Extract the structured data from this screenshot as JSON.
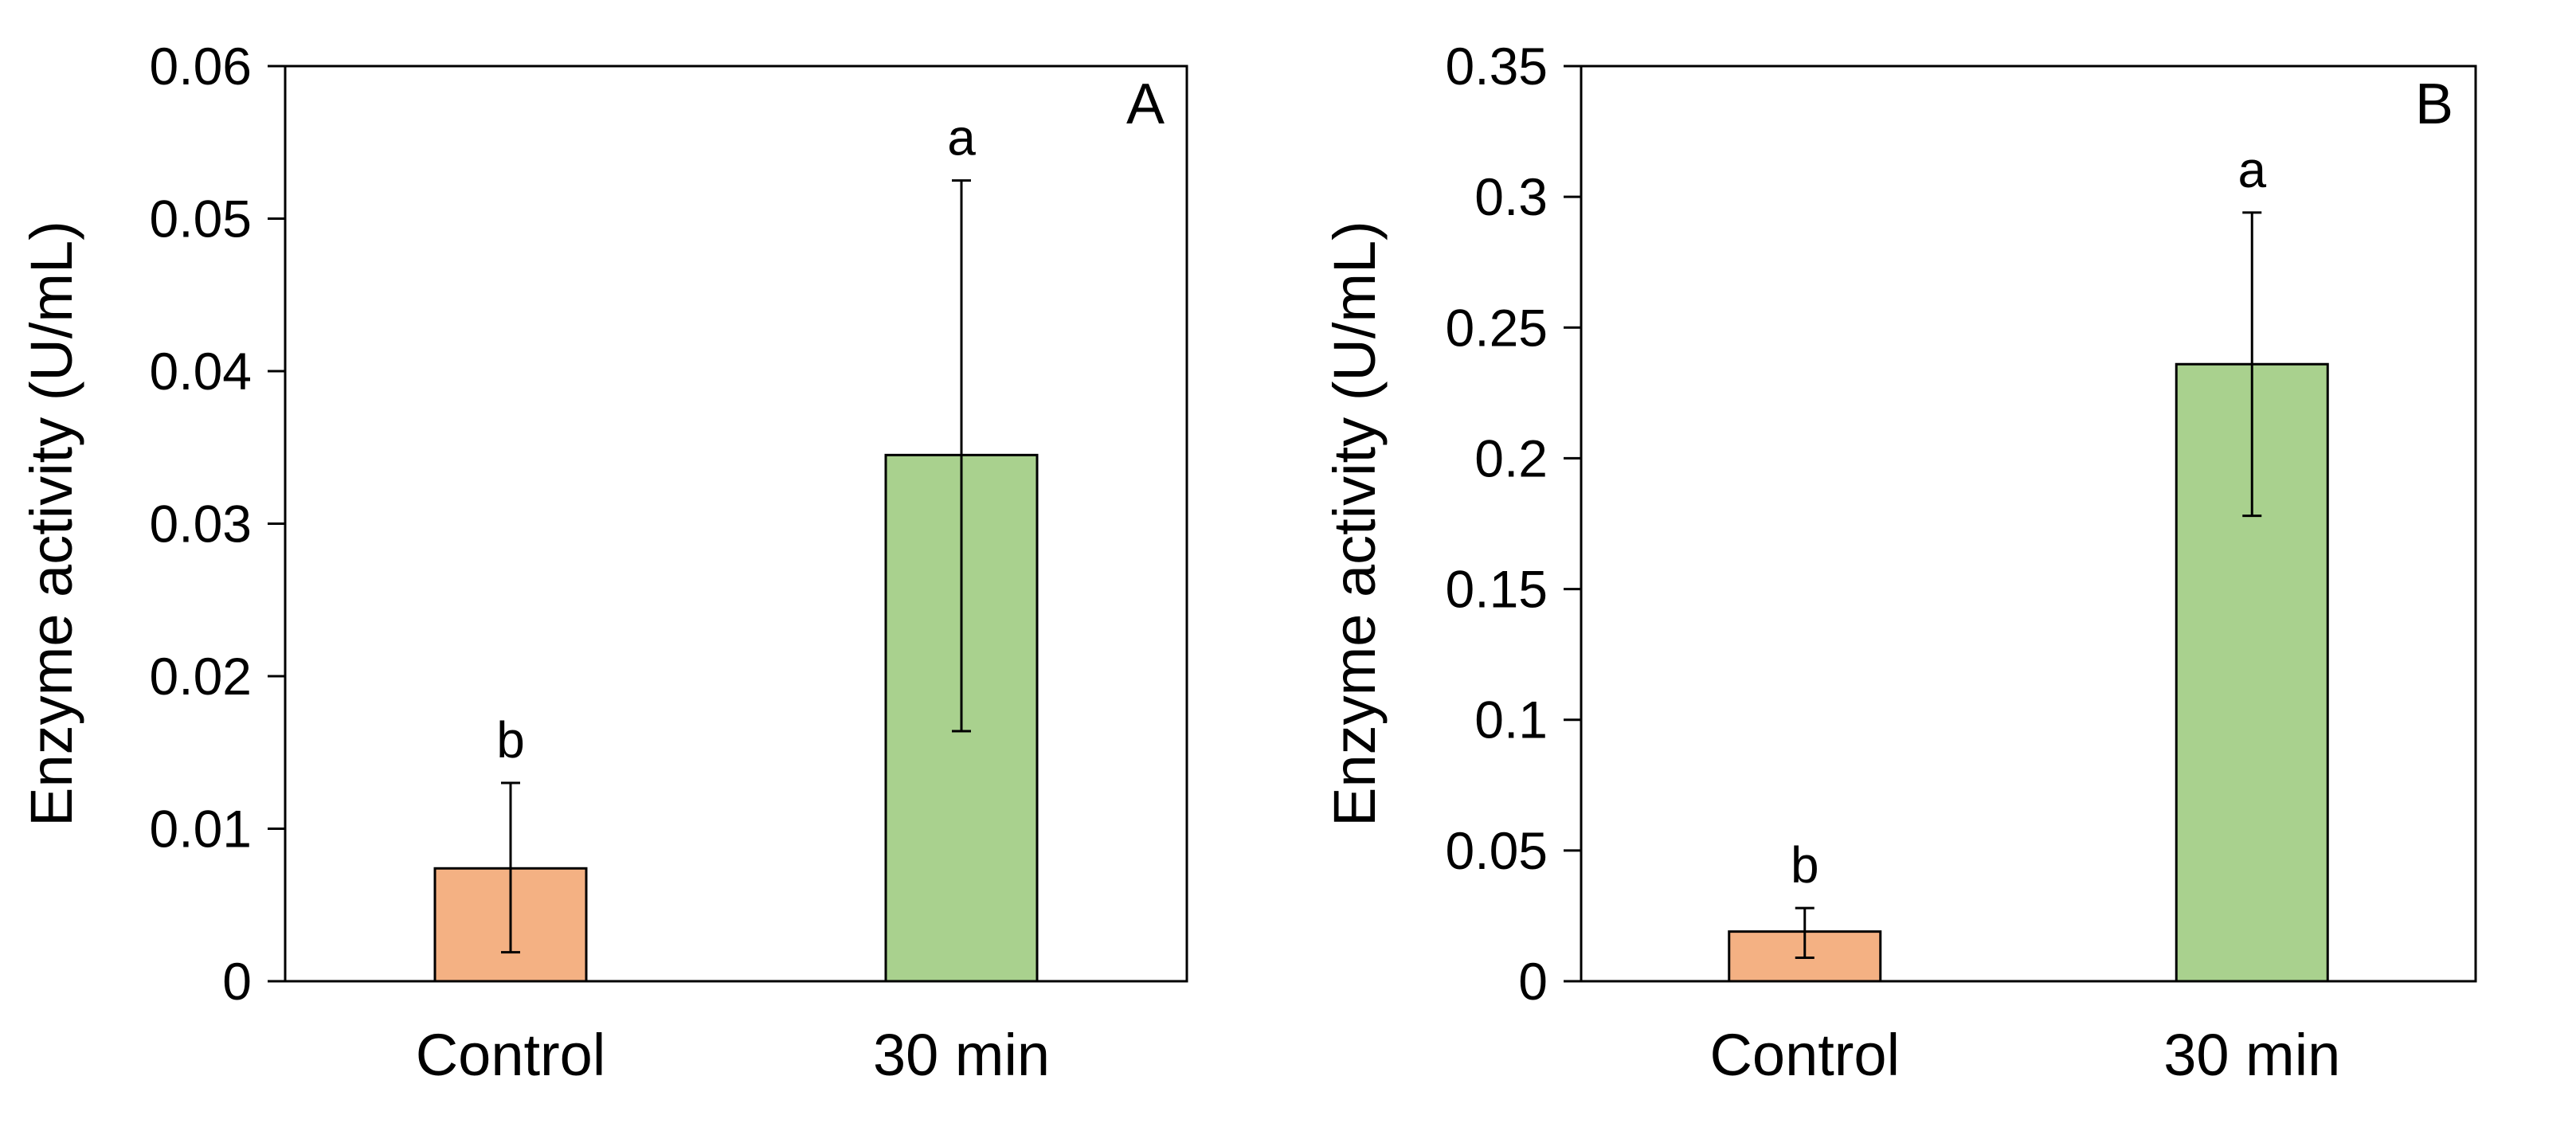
{
  "figure_title": "",
  "chart_data": [
    {
      "type": "bar",
      "panel": "A",
      "title": "",
      "xlabel": "",
      "ylabel": "Enzyme activity (U/mL)",
      "categories": [
        "Control",
        "30 min"
      ],
      "values": [
        0.0074,
        0.0345
      ],
      "error_low": [
        0.0019,
        0.0164
      ],
      "error_high": [
        0.013,
        0.0525
      ],
      "significance": [
        "b",
        "a"
      ],
      "colors": [
        "#F4B183",
        "#A9D18E"
      ],
      "ylim": [
        0,
        0.06
      ],
      "yticks": [
        0,
        0.01,
        0.02,
        0.03,
        0.04,
        0.05,
        0.06
      ],
      "ytick_labels": [
        "0",
        "0.01",
        "0.02",
        "0.03",
        "0.04",
        "0.05",
        "0.06"
      ],
      "grid": false,
      "legend": "none"
    },
    {
      "type": "bar",
      "panel": "B",
      "title": "",
      "xlabel": "",
      "ylabel": "Enzyme activity (U/mL)",
      "categories": [
        "Control",
        "30 min"
      ],
      "values": [
        0.019,
        0.236
      ],
      "error_low": [
        0.009,
        0.178
      ],
      "error_high": [
        0.028,
        0.294
      ],
      "significance": [
        "b",
        "a"
      ],
      "colors": [
        "#F4B183",
        "#A9D18E"
      ],
      "ylim": [
        0,
        0.35
      ],
      "yticks": [
        0,
        0.05,
        0.1,
        0.15,
        0.2,
        0.25,
        0.3,
        0.35
      ],
      "ytick_labels": [
        "0",
        "0.05",
        "0.1",
        "0.15",
        "0.2",
        "0.25",
        "0.3",
        "0.35"
      ],
      "grid": false,
      "legend": "none"
    }
  ]
}
